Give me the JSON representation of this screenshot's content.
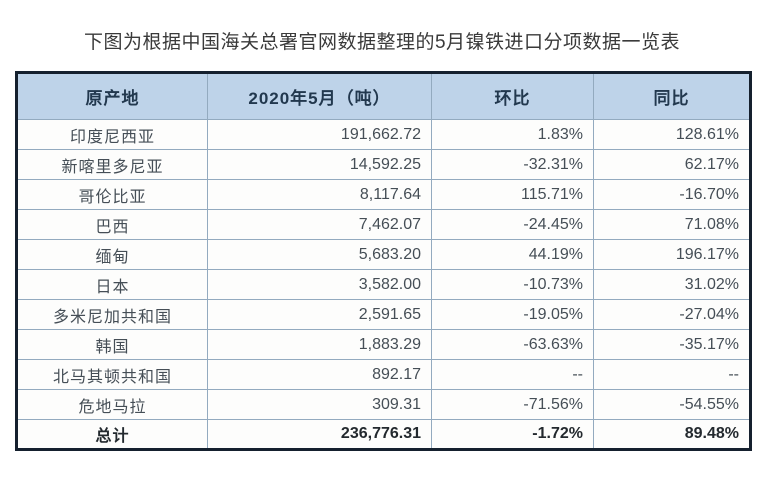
{
  "page": {
    "title": "下图为根据中国海关总署官网数据整理的5月镍铁进口分项数据一览表"
  },
  "chart_data": {
    "type": "table",
    "title": "5月镍铁进口分项数据一览表",
    "columns": [
      "原产地",
      "2020年5月（吨）",
      "环比",
      "同比"
    ],
    "rows": [
      [
        "印度尼西亚",
        "191,662.72",
        "1.83%",
        "128.61%"
      ],
      [
        "新喀里多尼亚",
        "14,592.25",
        "-32.31%",
        "62.17%"
      ],
      [
        "哥伦比亚",
        "8,117.64",
        "115.71%",
        "-16.70%"
      ],
      [
        "巴西",
        "7,462.07",
        "-24.45%",
        "71.08%"
      ],
      [
        "缅甸",
        "5,683.20",
        "44.19%",
        "196.17%"
      ],
      [
        "日本",
        "3,582.00",
        "-10.73%",
        "31.02%"
      ],
      [
        "多米尼加共和国",
        "2,591.65",
        "-19.05%",
        "-27.04%"
      ],
      [
        "韩国",
        "1,883.29",
        "-63.63%",
        "-35.17%"
      ],
      [
        "北马其顿共和国",
        "892.17",
        "--",
        "--"
      ],
      [
        "危地马拉",
        "309.31",
        "-71.56%",
        "-54.55%"
      ]
    ],
    "total_row": [
      "总计",
      "236,776.31",
      "-1.72%",
      "89.48%"
    ]
  },
  "colors": {
    "page_bg": "#ffffff",
    "title_color": "#3a3a3a",
    "outer_border": "#15202e",
    "grid_line": "#93aabf",
    "header_bg": "#bed3e9",
    "header_text": "#22384e",
    "body_text": "#454e56",
    "total_text": "#23292e"
  }
}
